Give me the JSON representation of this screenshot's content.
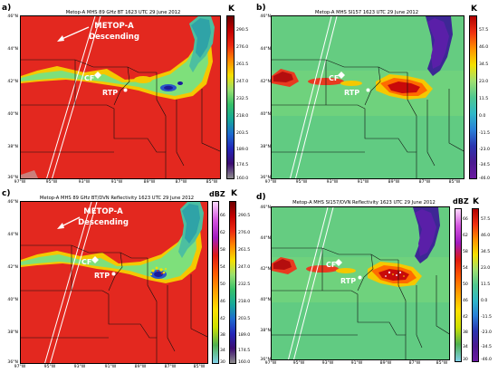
{
  "panels": [
    {
      "label": "a)",
      "title": "Metop-A MHS 89 GHz BT 1623 UTC 29 June 2012",
      "unit": "K",
      "ticks": [
        "290.5",
        "276.0",
        "261.5",
        "247.0",
        "232.5",
        "218.0",
        "203.5",
        "189.0",
        "174.5",
        "160.0"
      ],
      "sat_title": "METOP-A",
      "sat_sub": "Descending",
      "cf": "CF",
      "rtp": "RTP"
    },
    {
      "label": "b)",
      "title": "Metop-A MHS SI157 1623 UTC 29 June 2012",
      "unit": "K",
      "ticks": [
        "57.5",
        "46.0",
        "34.5",
        "23.0",
        "11.5",
        "0.0",
        "-11.5",
        "-23.0",
        "-34.5",
        "-46.0"
      ],
      "cf": "CF",
      "rtp": "RTP"
    },
    {
      "label": "c)",
      "title": "Metop-A MHS 89 GHz BT/DVN Reflectivity 1623 UTC 29 June 2012",
      "unit": "K",
      "unit2": "dBZ",
      "ticks": [
        "290.5",
        "276.0",
        "261.5",
        "247.0",
        "232.5",
        "218.0",
        "203.5",
        "189.0",
        "174.5",
        "160.0"
      ],
      "ticks2": [
        "66",
        "62",
        "58",
        "54",
        "50",
        "46",
        "42",
        "38",
        "34",
        "30"
      ],
      "sat_title": "METOP-A",
      "sat_sub": "Descending",
      "cf": "CF",
      "rtp": "RTP"
    },
    {
      "label": "d)",
      "title": "Metop-A MHS SI157/DVN Reflectivity 1623 UTC 29 June 2012",
      "unit": "K",
      "unit2": "dBZ",
      "ticks": [
        "57.5",
        "46.0",
        "34.5",
        "23.0",
        "11.5",
        "0.0",
        "-11.5",
        "-23.0",
        "-34.5",
        "-46.0"
      ],
      "ticks2": [
        "66",
        "62",
        "58",
        "54",
        "50",
        "46",
        "42",
        "38",
        "34",
        "30"
      ],
      "cf": "CF",
      "rtp": "RTP"
    }
  ],
  "lat_labels": [
    "46°N",
    "44°N",
    "42°N",
    "40°N",
    "38°N",
    "36°N"
  ],
  "lon_labels": [
    "97°W",
    "95°W",
    "93°W",
    "91°W",
    "89°W",
    "87°W",
    "85°W"
  ],
  "colors": {
    "bt_bg": "#e3281f",
    "si_bg": "#6fd27d",
    "lake": "#3a2288"
  }
}
